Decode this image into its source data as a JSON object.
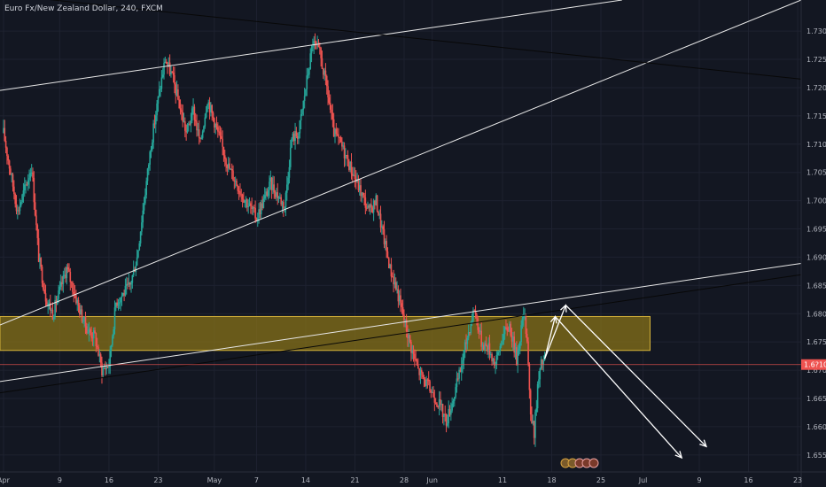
{
  "chart_data": {
    "type": "candlestick",
    "title": "Euro Fx/New Zealand Dollar, 240, FXCM",
    "symbol": "Euro Fx/New Zealand Dollar",
    "interval": "240",
    "source": "FXCM",
    "ylim": [
      1.652,
      1.7355
    ],
    "y_ticks": [
      1.655,
      1.66,
      1.665,
      1.67,
      1.675,
      1.68,
      1.685,
      1.69,
      1.695,
      1.7,
      1.705,
      1.71,
      1.715,
      1.72,
      1.725,
      1.73
    ],
    "y_tick_labels": [
      "1.65500",
      "1.66000",
      "1.66500",
      "1.67000",
      "1.67500",
      "1.68000",
      "1.68500",
      "1.69000",
      "1.69500",
      "1.70000",
      "1.70500",
      "1.71000",
      "1.71500",
      "1.72000",
      "1.72500",
      "1.73000"
    ],
    "x_ticks": [
      {
        "label": "Apr",
        "day": 0
      },
      {
        "label": "9",
        "day": 8
      },
      {
        "label": "16",
        "day": 15
      },
      {
        "label": "23",
        "day": 22
      },
      {
        "label": "May",
        "day": 30
      },
      {
        "label": "7",
        "day": 36
      },
      {
        "label": "14",
        "day": 43
      },
      {
        "label": "21",
        "day": 50
      },
      {
        "label": "28",
        "day": 57
      },
      {
        "label": "Jun",
        "day": 61
      },
      {
        "label": "11",
        "day": 71
      },
      {
        "label": "18",
        "day": 78
      },
      {
        "label": "25",
        "day": 85
      },
      {
        "label": "Jul",
        "day": 91
      },
      {
        "label": "9",
        "day": 99
      },
      {
        "label": "16",
        "day": 106
      },
      {
        "label": "23",
        "day": 113
      }
    ],
    "xlim_days": [
      -0.5,
      113.5
    ],
    "last_price": 1.671,
    "last_price_label": "1.6?100",
    "close_path": [
      [
        0,
        1.712
      ],
      [
        2,
        1.698
      ],
      [
        4,
        1.706
      ],
      [
        5,
        1.69
      ],
      [
        6,
        1.683
      ],
      [
        7,
        1.68
      ],
      [
        9,
        1.688
      ],
      [
        11,
        1.68
      ],
      [
        12,
        1.677
      ],
      [
        13,
        1.676
      ],
      [
        14,
        1.67
      ],
      [
        15,
        1.671
      ],
      [
        16,
        1.682
      ],
      [
        18,
        1.685
      ],
      [
        19,
        1.69
      ],
      [
        20,
        1.7
      ],
      [
        21,
        1.71
      ],
      [
        22,
        1.718
      ],
      [
        23,
        1.725
      ],
      [
        24,
        1.722
      ],
      [
        26,
        1.712
      ],
      [
        27,
        1.716
      ],
      [
        28,
        1.71
      ],
      [
        29,
        1.718
      ],
      [
        30,
        1.714
      ],
      [
        32,
        1.706
      ],
      [
        34,
        1.701
      ],
      [
        36,
        1.697
      ],
      [
        38,
        1.703
      ],
      [
        40,
        1.699
      ],
      [
        41,
        1.711
      ],
      [
        42,
        1.712
      ],
      [
        43,
        1.72
      ],
      [
        44,
        1.728
      ],
      [
        45,
        1.726
      ],
      [
        46,
        1.72
      ],
      [
        47,
        1.712
      ],
      [
        48,
        1.71
      ],
      [
        49,
        1.707
      ],
      [
        50,
        1.704
      ],
      [
        52,
        1.698
      ],
      [
        53,
        1.7
      ],
      [
        54,
        1.694
      ],
      [
        55,
        1.688
      ],
      [
        56,
        1.684
      ],
      [
        57,
        1.679
      ],
      [
        58,
        1.674
      ],
      [
        59,
        1.67
      ],
      [
        60,
        1.668
      ],
      [
        61,
        1.666
      ],
      [
        62,
        1.664
      ],
      [
        63,
        1.661
      ],
      [
        64,
        1.665
      ],
      [
        65,
        1.67
      ],
      [
        66,
        1.676
      ],
      [
        67,
        1.681
      ],
      [
        68,
        1.675
      ],
      [
        69,
        1.674
      ],
      [
        70,
        1.671
      ],
      [
        71,
        1.676
      ],
      [
        72,
        1.678
      ],
      [
        73,
        1.672
      ],
      [
        74,
        1.68
      ],
      [
        74.5,
        1.676
      ],
      [
        75,
        1.662
      ],
      [
        75.5,
        1.659
      ],
      [
        76,
        1.667
      ],
      [
        76.5,
        1.671
      ],
      [
        77,
        1.672
      ]
    ],
    "zone": {
      "from_day": -0.5,
      "to_day": 92,
      "price_low": 1.6735,
      "price_high": 1.6795
    },
    "trendlines": [
      {
        "from": [
          -0.5,
          1.7195
        ],
        "to": [
          88,
          1.7355
        ],
        "color": "#e8e8e8"
      },
      {
        "from": [
          -0.5,
          1.678
        ],
        "to": [
          113.5,
          1.7355
        ],
        "color": "#e8e8e8"
      },
      {
        "from": [
          -0.5,
          1.7365
        ],
        "to": [
          113.5,
          1.7215
        ],
        "color": "#080808"
      },
      {
        "from": [
          -0.5,
          1.668
        ],
        "to": [
          113.5,
          1.6889
        ],
        "color": "#e8e8e8"
      },
      {
        "from": [
          -0.5,
          1.666
        ],
        "to": [
          113.5,
          1.6869
        ],
        "color": "#080808"
      }
    ],
    "arrows": [
      {
        "points": [
          [
            77,
            1.672
          ],
          [
            78.5,
            1.6795
          ]
        ],
        "color": "#ffffff"
      },
      {
        "points": [
          [
            78.5,
            1.6795
          ],
          [
            96.5,
            1.6545
          ]
        ],
        "color": "#ffffff"
      },
      {
        "points": [
          [
            77,
            1.672
          ],
          [
            80,
            1.6815
          ]
        ],
        "color": "#ffffff"
      },
      {
        "points": [
          [
            80,
            1.6815
          ],
          [
            100,
            1.6565
          ]
        ],
        "color": "#ffffff"
      }
    ],
    "colors": {
      "background": "#131722",
      "grid": "#1e2230",
      "up": "#26a69a",
      "down": "#ef5350",
      "zone_fill": "#8a7418",
      "zone_border": "#d4b23a",
      "price_line": "#ef5350",
      "price_label_bg": "#ef5350",
      "axis_text": "#b2b5be"
    }
  }
}
